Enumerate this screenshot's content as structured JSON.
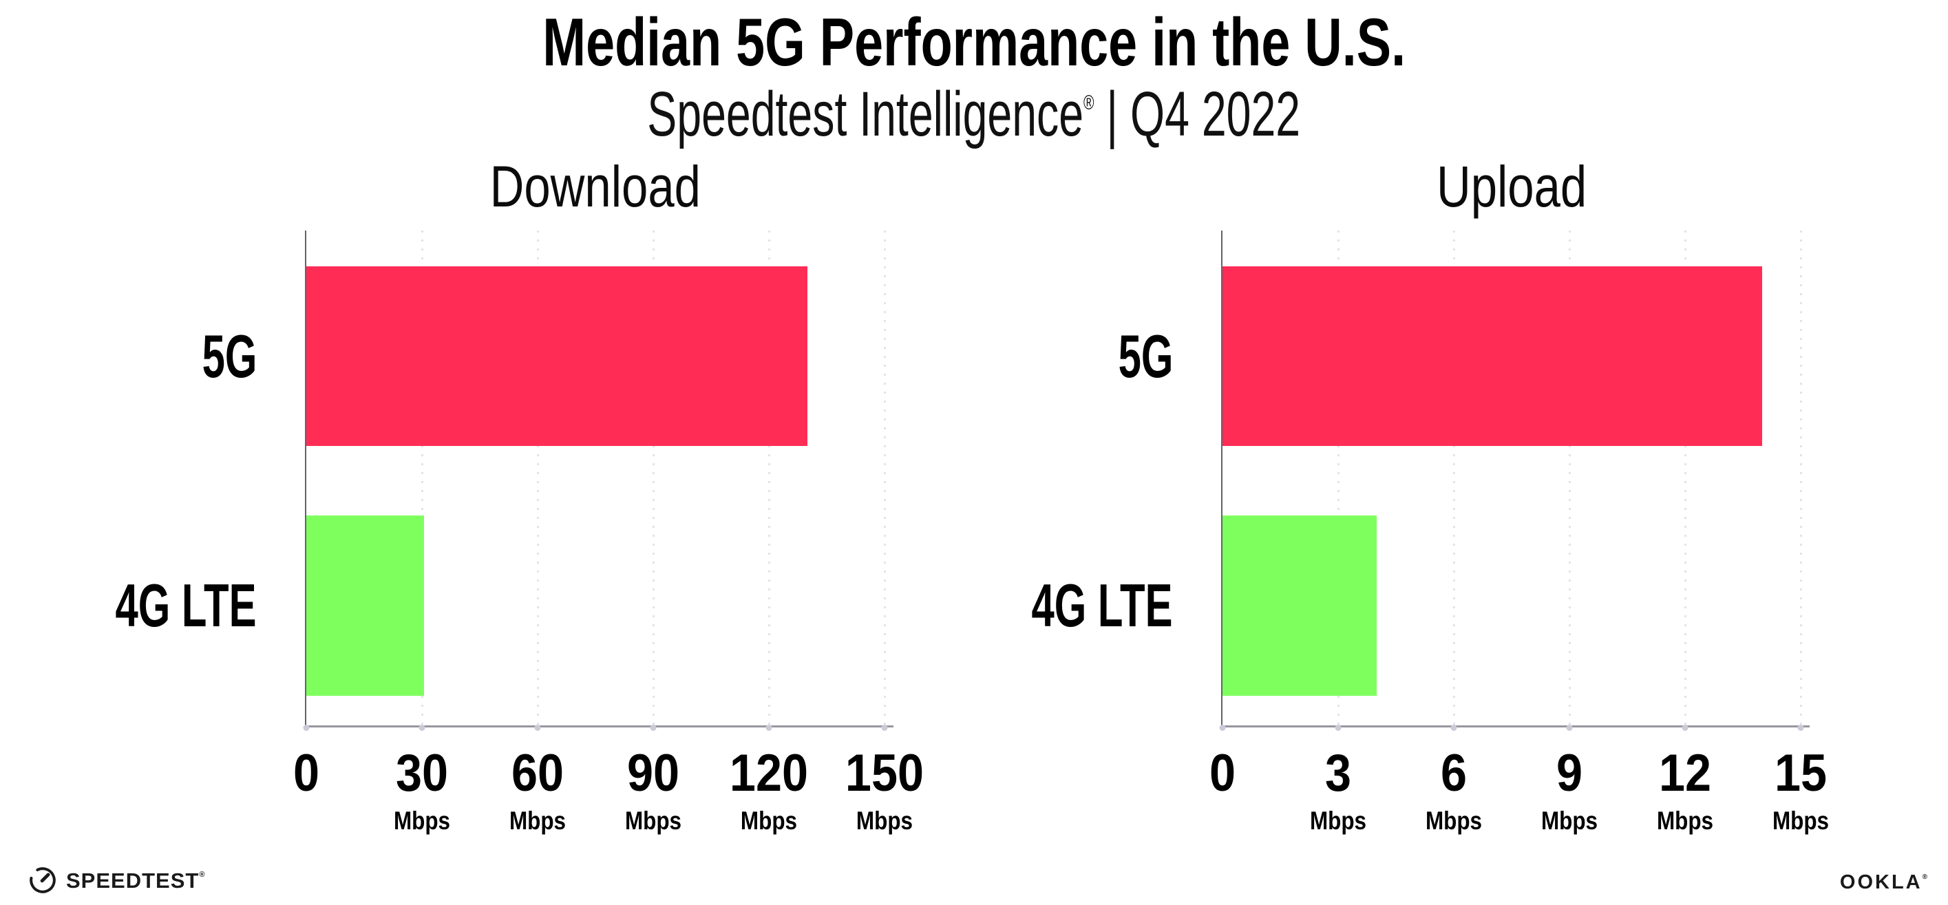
{
  "header": {
    "title": "Median 5G Performance in the U.S.",
    "subtitle_brand": "Speedtest Intelligence",
    "subtitle_reg": "®",
    "subtitle_rest": " | Q4 2022"
  },
  "footer": {
    "speedtest_label": "SPEEDTEST",
    "speedtest_reg": "®",
    "gauge_icon": "speedtest-gauge-icon",
    "ookla_label": "OOKLA",
    "ookla_reg": "®"
  },
  "colors": {
    "bar_5g": "#ff2d55",
    "bar_4g_lte": "#7fff5e",
    "gridline_dot": "#e3e2ee",
    "axis_vertical": "#63636c",
    "axis_horizontal": "#97979f",
    "tick_dot": "#cbcbd8",
    "text": "#000000"
  },
  "chart_data": [
    {
      "type": "bar",
      "orientation": "horizontal",
      "title": "Download",
      "categories": [
        "5G",
        "4G LTE"
      ],
      "values": [
        130,
        30.5
      ],
      "bar_colors": [
        "#ff2d55",
        "#7fff5e"
      ],
      "xlim": [
        0,
        150
      ],
      "xticks": [
        0,
        30,
        60,
        90,
        120,
        150
      ],
      "tick_unit": "Mbps",
      "grid": "dotted-vertical",
      "legend": "none"
    },
    {
      "type": "bar",
      "orientation": "horizontal",
      "title": "Upload",
      "categories": [
        "5G",
        "4G LTE"
      ],
      "values": [
        14,
        4
      ],
      "bar_colors": [
        "#ff2d55",
        "#7fff5e"
      ],
      "xlim": [
        0,
        15
      ],
      "xticks": [
        0,
        3,
        6,
        9,
        12,
        15
      ],
      "tick_unit": "Mbps",
      "grid": "dotted-vertical",
      "legend": "none"
    }
  ]
}
